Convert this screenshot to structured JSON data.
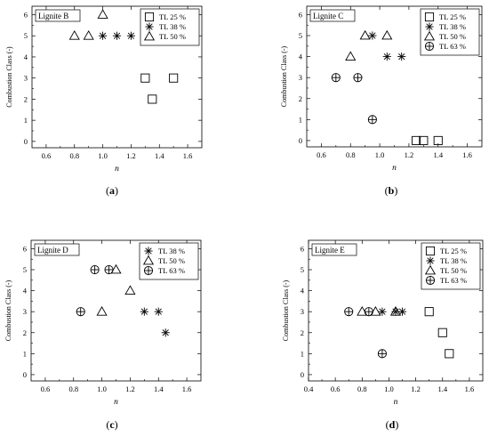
{
  "figure": {
    "subplot_labels": [
      "(a)",
      "(b)",
      "(c)",
      "(d)"
    ]
  },
  "chart_data": [
    {
      "type": "scatter",
      "title": "Lignite B",
      "xlabel": "n",
      "ylabel": "Combustion Class (-)",
      "xlim": [
        0.5,
        1.7
      ],
      "ylim": [
        -0.3,
        6.4
      ],
      "xticks": [
        0.6,
        0.8,
        1.0,
        1.2,
        1.4,
        1.6
      ],
      "yticks": [
        0,
        1,
        2,
        3,
        4,
        5,
        6
      ],
      "grid": false,
      "legend_position": "top-right",
      "series": [
        {
          "name": "TL 25 %",
          "marker": "square",
          "points": [
            [
              1.3,
              3
            ],
            [
              1.35,
              2
            ],
            [
              1.5,
              3
            ]
          ]
        },
        {
          "name": "TL 38 %",
          "marker": "asterisk",
          "points": [
            [
              1.0,
              5
            ],
            [
              1.1,
              5
            ],
            [
              1.2,
              5
            ]
          ]
        },
        {
          "name": "TL 50 %",
          "marker": "triangle",
          "points": [
            [
              0.8,
              5
            ],
            [
              0.9,
              5
            ],
            [
              1.0,
              6
            ]
          ]
        }
      ]
    },
    {
      "type": "scatter",
      "title": "Lignite C",
      "xlabel": "n",
      "ylabel": "Combustion Class (-)",
      "xlim": [
        0.5,
        1.7
      ],
      "ylim": [
        -0.3,
        6.4
      ],
      "xticks": [
        0.6,
        0.8,
        1.0,
        1.2,
        1.4,
        1.6
      ],
      "yticks": [
        0,
        1,
        2,
        3,
        4,
        5,
        6
      ],
      "grid": false,
      "legend_position": "top-right",
      "series": [
        {
          "name": "TL 25 %",
          "marker": "square",
          "points": [
            [
              1.25,
              0
            ],
            [
              1.3,
              0
            ],
            [
              1.4,
              0
            ]
          ]
        },
        {
          "name": "TL 38 %",
          "marker": "asterisk",
          "points": [
            [
              0.95,
              5
            ],
            [
              1.05,
              4
            ],
            [
              1.15,
              4
            ]
          ]
        },
        {
          "name": "TL 50 %",
          "marker": "triangle",
          "points": [
            [
              0.8,
              4
            ],
            [
              0.9,
              5
            ],
            [
              1.05,
              5
            ]
          ]
        },
        {
          "name": "TL 63 %",
          "marker": "circle-plus",
          "points": [
            [
              0.7,
              3
            ],
            [
              0.85,
              3
            ],
            [
              0.95,
              1
            ]
          ]
        }
      ]
    },
    {
      "type": "scatter",
      "title": "Lignite D",
      "xlabel": "n",
      "ylabel": "Combustion Class (-)",
      "xlim": [
        0.5,
        1.7
      ],
      "ylim": [
        -0.3,
        6.4
      ],
      "xticks": [
        0.6,
        0.8,
        1.0,
        1.2,
        1.4,
        1.6
      ],
      "yticks": [
        0,
        1,
        2,
        3,
        4,
        5,
        6
      ],
      "grid": false,
      "legend_position": "top-right",
      "series": [
        {
          "name": "TL 38 %",
          "marker": "asterisk",
          "points": [
            [
              1.3,
              3
            ],
            [
              1.4,
              3
            ],
            [
              1.45,
              2
            ]
          ]
        },
        {
          "name": "TL 50 %",
          "marker": "triangle",
          "points": [
            [
              1.0,
              3
            ],
            [
              1.1,
              5
            ],
            [
              1.2,
              4
            ]
          ]
        },
        {
          "name": "TL 63 %",
          "marker": "circle-plus",
          "points": [
            [
              0.85,
              3
            ],
            [
              0.95,
              5
            ],
            [
              1.05,
              5
            ]
          ]
        }
      ]
    },
    {
      "type": "scatter",
      "title": "Lignite E",
      "xlabel": "n",
      "ylabel": "Combustion Class (-)",
      "xlim": [
        0.4,
        1.7
      ],
      "ylim": [
        -0.3,
        6.4
      ],
      "xticks": [
        0.4,
        0.6,
        0.8,
        1.0,
        1.2,
        1.4,
        1.6
      ],
      "yticks": [
        0,
        1,
        2,
        3,
        4,
        5,
        6
      ],
      "grid": false,
      "legend_position": "top-right",
      "series": [
        {
          "name": "TL 25 %",
          "marker": "square",
          "points": [
            [
              1.3,
              3
            ],
            [
              1.4,
              2
            ],
            [
              1.45,
              1
            ]
          ]
        },
        {
          "name": "TL 38 %",
          "marker": "asterisk",
          "points": [
            [
              0.95,
              3
            ],
            [
              1.05,
              3
            ],
            [
              1.1,
              3
            ]
          ]
        },
        {
          "name": "TL 50 %",
          "marker": "triangle",
          "points": [
            [
              0.8,
              3
            ],
            [
              0.9,
              3
            ],
            [
              1.05,
              3
            ]
          ]
        },
        {
          "name": "TL 63 %",
          "marker": "circle-plus",
          "points": [
            [
              0.7,
              3
            ],
            [
              0.85,
              3
            ],
            [
              0.95,
              1
            ]
          ]
        }
      ]
    }
  ]
}
